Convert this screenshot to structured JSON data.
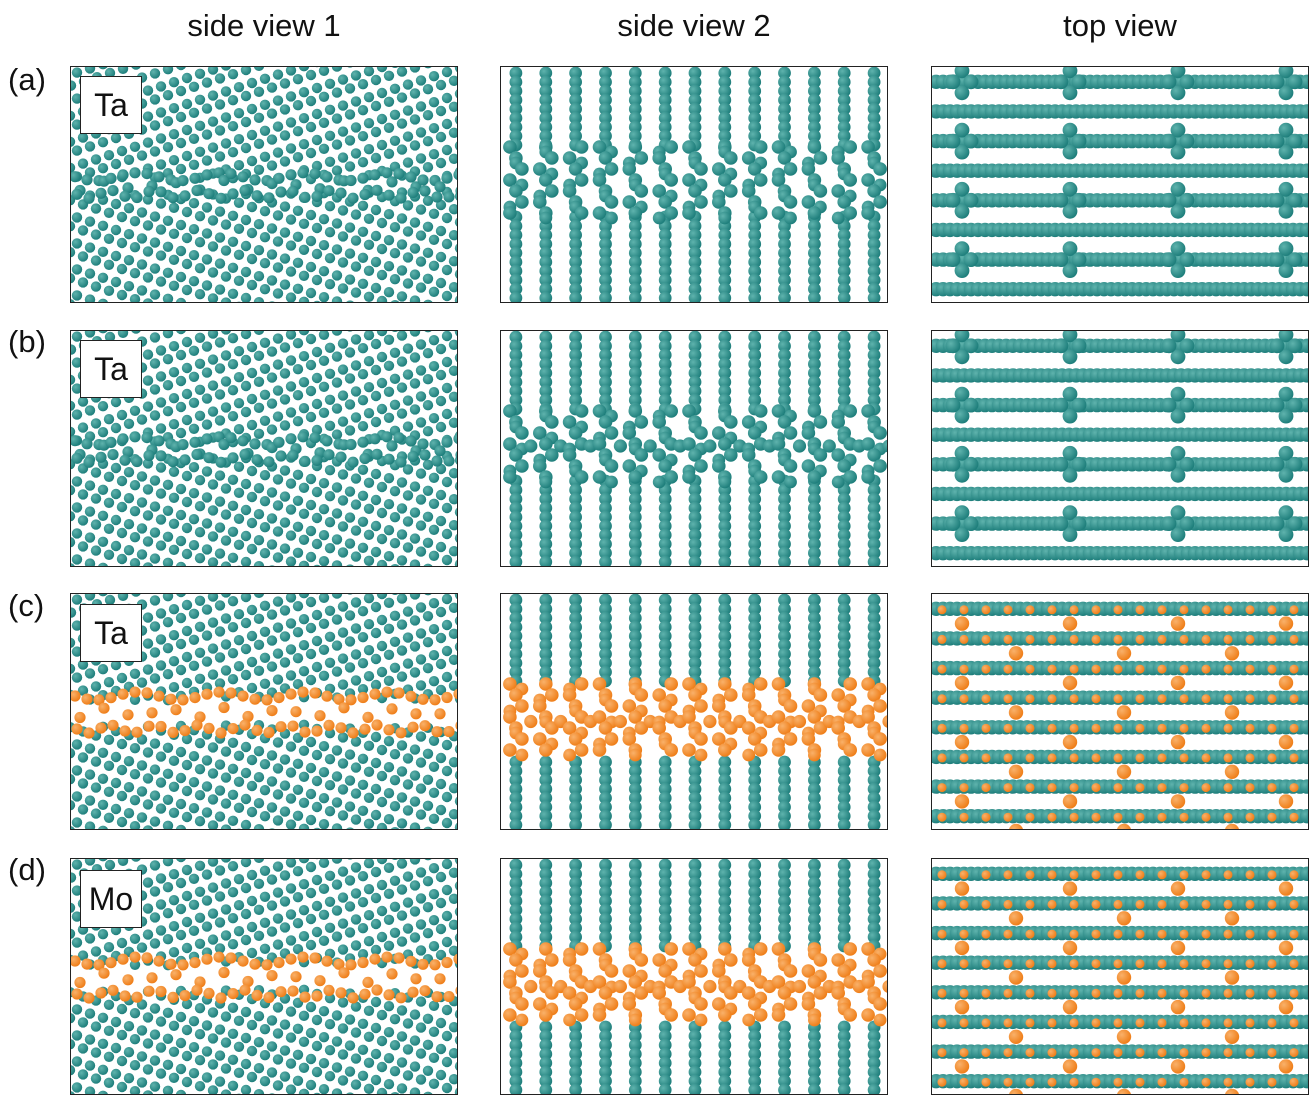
{
  "columns": [
    "side view 1",
    "side view 2",
    "top view"
  ],
  "rows": [
    {
      "label": "(a)",
      "element": "Ta",
      "segregated": false,
      "top_pattern": "cross"
    },
    {
      "label": "(b)",
      "element": "Ta",
      "segregated": false,
      "top_pattern": "cross"
    },
    {
      "label": "(c)",
      "element": "Ta",
      "segregated": true,
      "top_pattern": "dot"
    },
    {
      "label": "(d)",
      "element": "Mo",
      "segregated": true,
      "top_pattern": "dot"
    }
  ],
  "colors": {
    "host_atom": "#1f7f7c",
    "host_atom_highlight": "#5fb3ad",
    "solute_atom": "#ef7f1a",
    "solute_atom_highlight": "#f9b16a",
    "frame": "#222222"
  }
}
